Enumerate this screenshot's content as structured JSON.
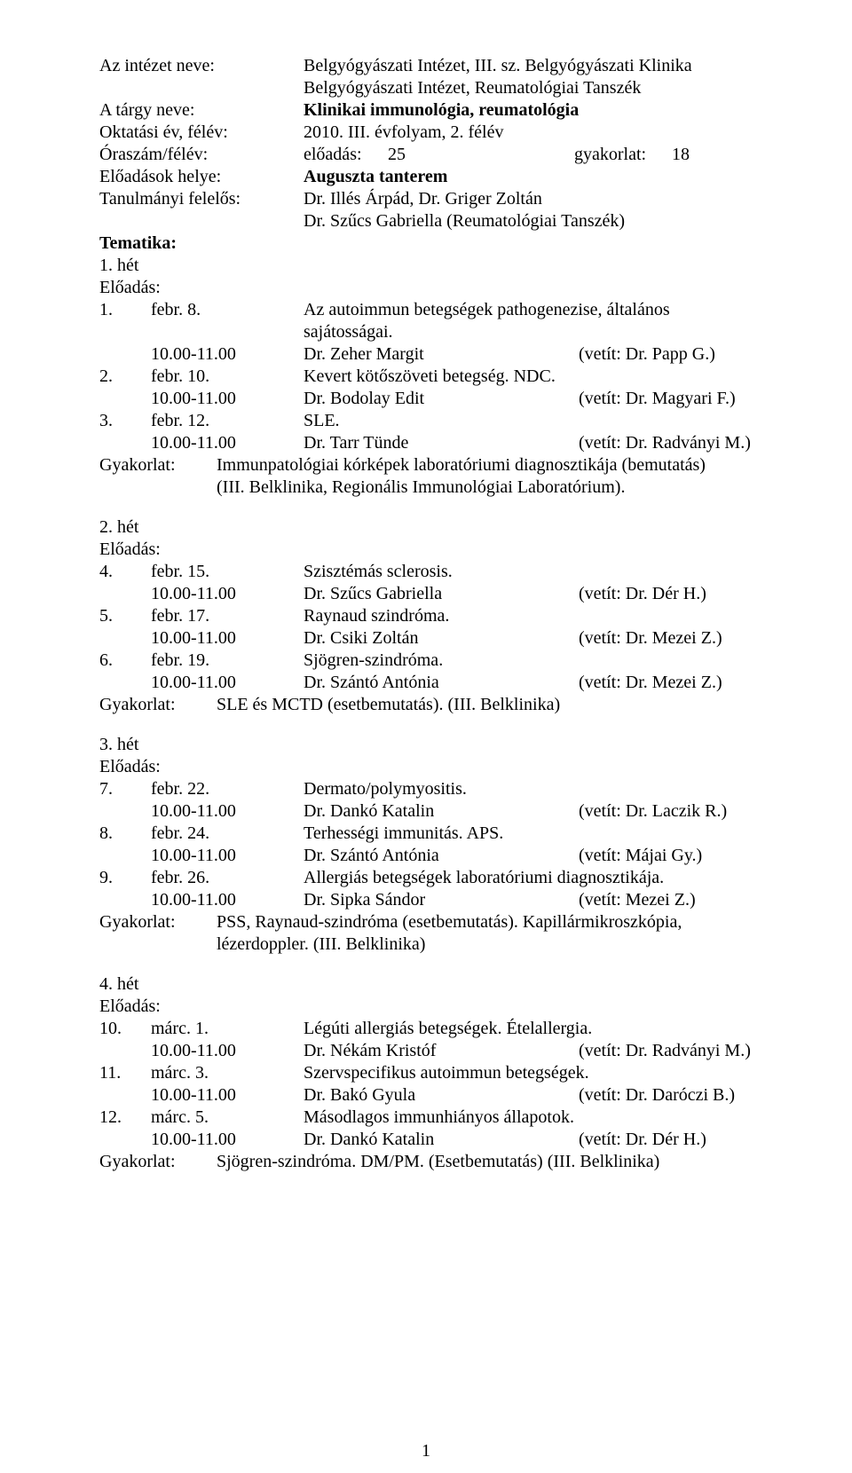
{
  "header": {
    "l_institute": "Az intézet neve:",
    "institute_line1": "Belgyógyászati Intézet, III. sz. Belgyógyászati Klinika",
    "institute_line2": "Belgyógyászati Intézet, Reumatológiai Tanszék",
    "l_subject": "A tárgy neve:",
    "subject": "Klinikai immunológia, reumatológia",
    "l_year": "Oktatási év, félév:",
    "year": "2010. III. évfolyam, 2. félév",
    "l_hours": "Óraszám/félév:",
    "h_lec_lbl": "előadás:",
    "h_lec_n": "25",
    "h_prac_lbl": "gyakorlat:",
    "h_prac_n": "18",
    "l_place": "Előadások helye:",
    "place": "Auguszta tanterem",
    "l_resp": "Tanulmányi felelős:",
    "resp_line1": "Dr. Illés Árpád, Dr. Griger Zoltán",
    "resp_line2": "Dr. Szűcs Gabriella (Reumatológiai Tanszék)",
    "tematika": "Tematika:"
  },
  "labels": {
    "eload": "Előadás:",
    "gyak": "Gyakorlat:"
  },
  "weeks": [
    {
      "name": "1. hét",
      "lectures": [
        {
          "num": "1.",
          "date": "febr. 8.",
          "title": "Az autoimmun betegségek pathogenezise, általános sajátosságai.",
          "time": "10.00-11.00",
          "lecturer": "Dr. Zeher Margit",
          "proj": "(vetít: Dr. Papp G.)"
        },
        {
          "num": "2.",
          "date": "febr. 10.",
          "title": "Kevert kötőszöveti betegség. NDC.",
          "time": "10.00-11.00",
          "lecturer": "Dr. Bodolay Edit",
          "proj": "(vetít: Dr. Magyari F.)"
        },
        {
          "num": "3.",
          "date": "febr. 12.",
          "title": "SLE.",
          "time": "10.00-11.00",
          "lecturer": "Dr. Tarr Tünde",
          "proj": "(vetít: Dr. Radványi M.)"
        }
      ],
      "gyak_lines": [
        "Immunpatológiai kórképek laboratóriumi diagnosztikája (bemutatás)",
        "(III. Belklinika, Regionális Immunológiai Laboratórium)."
      ]
    },
    {
      "name": "2. hét",
      "lectures": [
        {
          "num": "4.",
          "date": "febr. 15.",
          "title": "Szisztémás sclerosis.",
          "time": "10.00-11.00",
          "lecturer": "Dr. Szűcs Gabriella",
          "proj": "(vetít: Dr. Dér H.)"
        },
        {
          "num": "5.",
          "date": "febr. 17.",
          "title": "Raynaud szindróma.",
          "time": "10.00-11.00",
          "lecturer": "Dr. Csiki Zoltán",
          "proj": "(vetít: Dr. Mezei Z.)"
        },
        {
          "num": "6.",
          "date": "febr. 19.",
          "title": "Sjögren-szindróma.",
          "time": "10.00-11.00",
          "lecturer": "Dr. Szántó Antónia",
          "proj": "(vetít: Dr. Mezei Z.)"
        }
      ],
      "gyak_lines": [
        "SLE és MCTD (esetbemutatás). (III. Belklinika)"
      ]
    },
    {
      "name": "3. hét",
      "lectures": [
        {
          "num": "7.",
          "date": "febr. 22.",
          "title": "Dermato/polymyositis.",
          "time": "10.00-11.00",
          "lecturer": "Dr. Dankó Katalin",
          "proj": "(vetít: Dr. Laczik R.)"
        },
        {
          "num": "8.",
          "date": "febr. 24.",
          "title": "Terhességi immunitás. APS.",
          "time": "10.00-11.00",
          "lecturer": "Dr. Szántó Antónia",
          "proj": "(vetít: Májai Gy.)"
        },
        {
          "num": "9.",
          "date": "febr. 26.",
          "title": "Allergiás betegségek laboratóriumi diagnosztikája.",
          "time": "10.00-11.00",
          "lecturer": "Dr. Sipka Sándor",
          "proj": "(vetít: Mezei Z.)"
        }
      ],
      "gyak_lines": [
        "PSS, Raynaud-szindróma (esetbemutatás). Kapillármikroszkópia,",
        "lézerdoppler. (III. Belklinika)"
      ]
    },
    {
      "name": "4. hét",
      "lectures": [
        {
          "num": "10.",
          "date": "márc. 1.",
          "title": "Légúti allergiás betegségek. Ételallergia.",
          "time": "10.00-11.00",
          "lecturer": "Dr. Nékám Kristóf",
          "proj": "(vetít: Dr. Radványi M.)"
        },
        {
          "num": "11.",
          "date": "márc. 3.",
          "title": "Szervspecifikus autoimmun betegségek.",
          "time": "10.00-11.00",
          "lecturer": "Dr. Bakó Gyula",
          "proj": "(vetít: Dr. Daróczi B.)"
        },
        {
          "num": "12.",
          "date": "márc. 5.",
          "title": "Másodlagos immunhiányos állapotok.",
          "time": "10.00-11.00",
          "lecturer": "Dr. Dankó Katalin",
          "proj": "(vetít: Dr. Dér H.)"
        }
      ],
      "gyak_lines": [
        "Sjögren-szindróma. DM/PM. (Esetbemutatás) (III. Belklinika)"
      ]
    }
  ],
  "page_number": "1"
}
